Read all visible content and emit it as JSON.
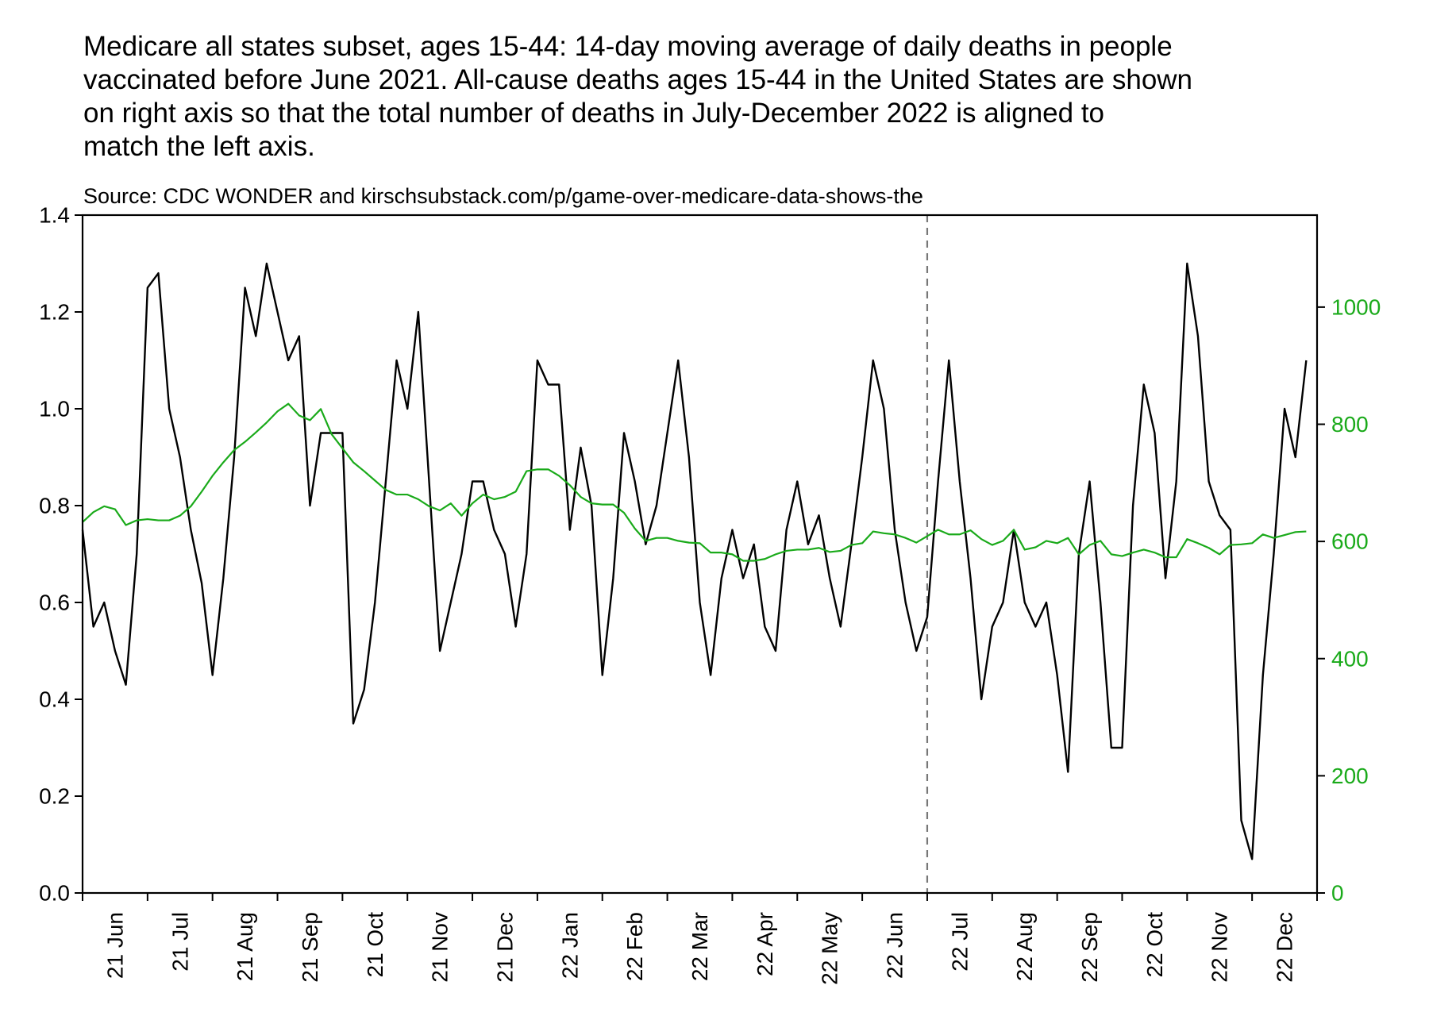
{
  "chart_data": {
    "type": "line",
    "title": [
      "Medicare all states subset, ages 15-44: 14-day moving average of daily deaths in people",
      "vaccinated before June 2021. All-cause deaths ages 15-44 in the United States are shown",
      "on right axis so that the total number of deaths in July-December 2022 is aligned to",
      "match the left axis."
    ],
    "subtitle": "Source: CDC WONDER and kirschsubstack.com/p/game-over-medicare-data-shows-the",
    "categories": [
      null,
      null,
      null,
      "21 Jun",
      null,
      null,
      null,
      null,
      null,
      "21 Jul",
      null,
      null,
      null,
      null,
      null,
      "21 Aug",
      null,
      null,
      null,
      null,
      null,
      "21 Sep",
      null,
      null,
      null,
      null,
      null,
      "21 Oct",
      null,
      null,
      null,
      null,
      null,
      "21 Nov",
      null,
      null,
      null,
      null,
      null,
      "21 Dec",
      null,
      null,
      null,
      null,
      null,
      "22 Jan",
      null,
      null,
      null,
      null,
      null,
      "22 Feb",
      null,
      null,
      null,
      null,
      null,
      "22 Mar",
      null,
      null,
      null,
      null,
      null,
      "22 Apr",
      null,
      null,
      null,
      null,
      null,
      "22 May",
      null,
      null,
      null,
      null,
      null,
      "22 Jun",
      null,
      null,
      null,
      null,
      null,
      "22 Jul",
      null,
      null,
      null,
      null,
      null,
      "22 Aug",
      null,
      null,
      null,
      null,
      null,
      "22 Sep",
      null,
      null,
      null,
      null,
      null,
      "22 Oct",
      null,
      null,
      null,
      null,
      null,
      "22 Nov",
      null,
      null,
      null,
      null,
      null,
      "22 Dec",
      null,
      null
    ],
    "series": [
      {
        "color": "#000000",
        "values": [
          0.75,
          0.55,
          0.6,
          0.5,
          0.43,
          0.7,
          1.25,
          1.28,
          1.0,
          0.9,
          0.75,
          0.64,
          0.45,
          0.65,
          0.9,
          1.25,
          1.15,
          1.3,
          1.2,
          1.1,
          1.15,
          0.8,
          0.95,
          0.95,
          0.95,
          0.35,
          0.42,
          0.6,
          0.85,
          1.1,
          1.0,
          1.2,
          0.85,
          0.5,
          0.6,
          0.7,
          0.85,
          0.85,
          0.75,
          0.7,
          0.55,
          0.7,
          1.1,
          1.05,
          1.05,
          0.75,
          0.92,
          0.8,
          0.45,
          0.65,
          0.95,
          0.85,
          0.72,
          0.8,
          0.95,
          1.1,
          0.9,
          0.6,
          0.45,
          0.65,
          0.75,
          0.65,
          0.72,
          0.55,
          0.5,
          0.75,
          0.85,
          0.72,
          0.78,
          0.65,
          0.55,
          0.72,
          0.9,
          1.1,
          1.0,
          0.75,
          0.6,
          0.5,
          0.57,
          0.85,
          1.1,
          0.85,
          0.65,
          0.4,
          0.55,
          0.6,
          0.75,
          0.6,
          0.55,
          0.6,
          0.45,
          0.25,
          0.7,
          0.85,
          0.6,
          0.3,
          0.3,
          0.8,
          1.05,
          0.95,
          0.65,
          0.85,
          1.3,
          1.15,
          0.85,
          0.78,
          0.75,
          0.15,
          0.07,
          0.45,
          0.7,
          1.0,
          0.9,
          1.1
        ]
      },
      {
        "color": "#1aaa1a",
        "axis": "y2",
        "values": [
          633,
          650,
          660,
          655,
          628,
          636,
          638,
          636,
          636,
          644,
          660,
          685,
          712,
          735,
          756,
          770,
          786,
          803,
          822,
          835,
          815,
          807,
          826,
          783,
          759,
          735,
          720,
          704,
          688,
          680,
          680,
          672,
          660,
          653,
          665,
          644,
          665,
          680,
          672,
          676,
          685,
          720,
          723,
          723,
          712,
          696,
          676,
          665,
          663,
          663,
          649,
          622,
          601,
          606,
          606,
          601,
          598,
          597,
          581,
          581,
          578,
          567,
          567,
          570,
          578,
          584,
          586,
          586,
          589,
          582,
          584,
          594,
          597,
          617,
          614,
          612,
          606,
          598,
          609,
          620,
          612,
          612,
          619,
          604,
          594,
          601,
          620,
          586,
          590,
          601,
          597,
          606,
          578,
          594,
          601,
          578,
          575,
          581,
          586,
          581,
          573,
          573,
          604,
          597,
          589,
          578,
          594,
          595,
          597,
          612,
          606,
          611,
          616,
          617
        ]
      }
    ],
    "ylim": [
      0,
      1.4
    ],
    "yticks": [
      {
        "value": 0,
        "label": "0.0"
      },
      0.2,
      0.4,
      0.6,
      0.8,
      {
        "value": 1,
        "label": "1.0"
      },
      1.2,
      1.4
    ],
    "y2lim": [
      0,
      1157
    ],
    "y2ticks": [
      0,
      200,
      400,
      600,
      800,
      1000
    ],
    "y2color": "#1aaa1a",
    "annotation_line": "22 Jul"
  }
}
